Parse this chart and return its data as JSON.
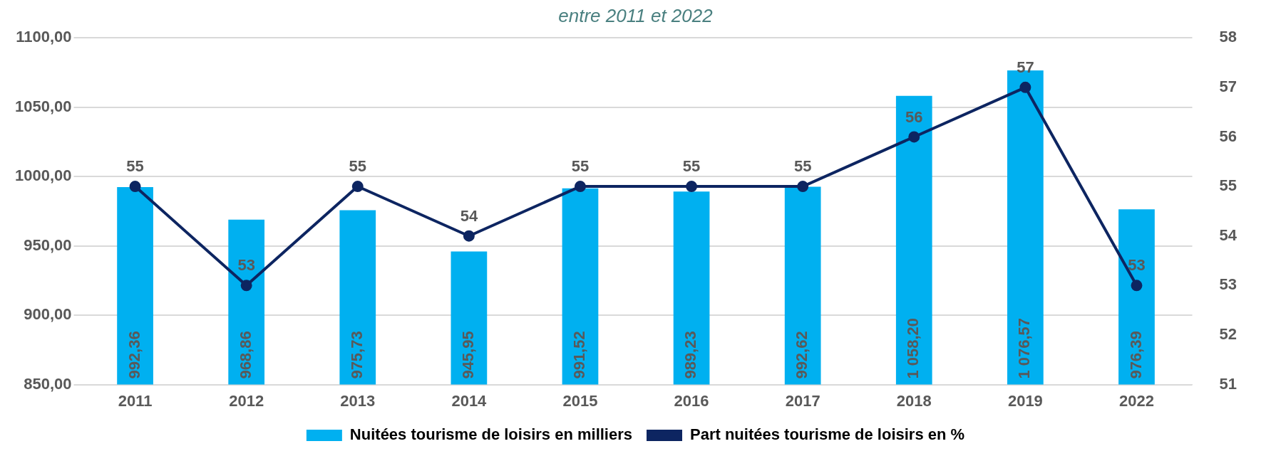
{
  "chart_data": {
    "type": "bar",
    "subtitle": "entre 2011 et 2022",
    "categories": [
      "2011",
      "2012",
      "2013",
      "2014",
      "2015",
      "2016",
      "2017",
      "2018",
      "2019",
      "2022"
    ],
    "series": [
      {
        "name": "Nuitées tourisme de loisirs en milliers",
        "color": "#00b0f0",
        "values": [
          992.36,
          968.86,
          975.73,
          945.95,
          991.52,
          989.23,
          992.62,
          1058.2,
          1076.57,
          976.39
        ],
        "value_labels": [
          "992,36",
          "968,86",
          "975,73",
          "945,95",
          "991,52",
          "989,23",
          "992,62",
          "1 058,20",
          "1 076,57",
          "976,39"
        ]
      },
      {
        "name": "Part nuitées tourisme de loisirs en %",
        "type": "line",
        "axis": "y2",
        "color": "#0d2561",
        "marker": "circle",
        "values": [
          55,
          53,
          55,
          54,
          55,
          55,
          55,
          56,
          57,
          53
        ],
        "value_labels": [
          "55",
          "53",
          "55",
          "54",
          "55",
          "55",
          "55",
          "56",
          "57",
          "53"
        ]
      }
    ],
    "ylim": [
      850,
      1100
    ],
    "yticks": [
      {
        "value": 850,
        "label": "850,00"
      },
      {
        "value": 900,
        "label": "900,00"
      },
      {
        "value": 950,
        "label": "950,00"
      },
      {
        "value": 1000,
        "label": "1000,00"
      },
      {
        "value": 1050,
        "label": "1050,00"
      },
      {
        "value": 1100,
        "label": "1100,00"
      }
    ],
    "y2lim": [
      51,
      58
    ],
    "y2ticks": [
      51,
      52,
      53,
      54,
      55,
      56,
      57,
      58
    ],
    "grid": "y",
    "legend": "bottom"
  }
}
